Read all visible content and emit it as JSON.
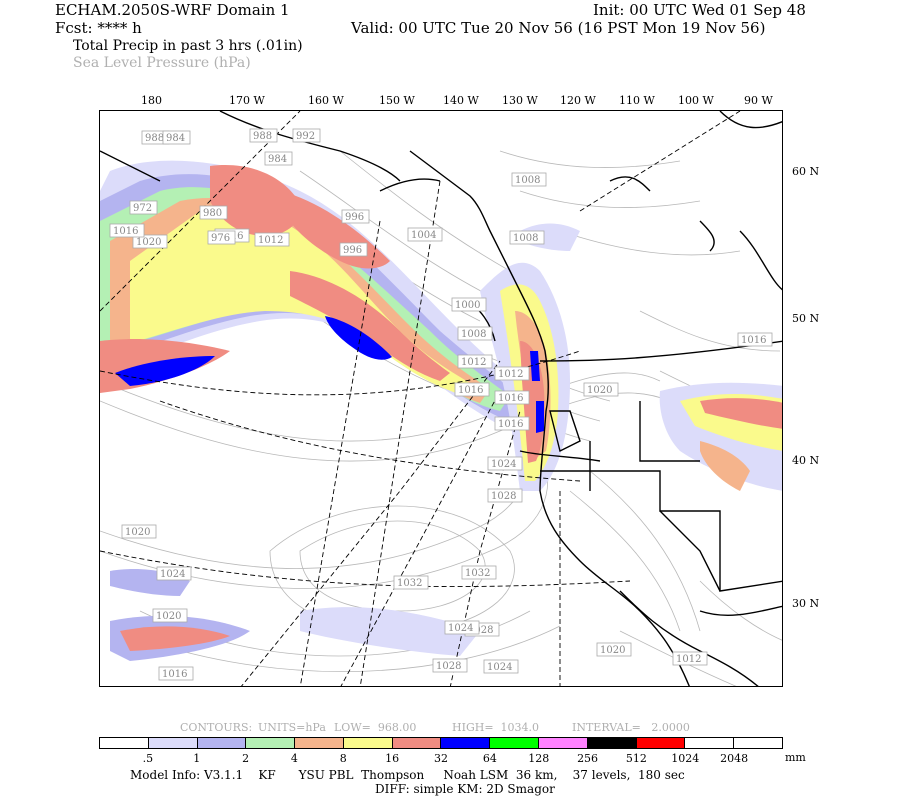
{
  "header": {
    "model_line": "ECHAM.2050S-WRF Domain 1",
    "fcst_line": "Fcst: **** h",
    "init_line": "Init: 00 UTC Wed 01 Sep 48",
    "valid_line": "Valid: 00 UTC Tue 20 Nov 56 (16 PST Mon 19 Nov 56)",
    "field1": "Total Precip in past 3 hrs (.01in)",
    "field2": "Sea Level Pressure (hPa)"
  },
  "map": {
    "lon_labels": [
      "180",
      "170 W",
      "160 W",
      "150 W",
      "140 W",
      "130 W",
      "120 W",
      "110 W",
      "100 W",
      "90 W"
    ],
    "lat_labels": [
      "60 N",
      "50 N",
      "40 N",
      "30 N"
    ],
    "pressure_labels": [
      "988",
      "984",
      "988",
      "992",
      "984",
      "996",
      "996",
      "1008",
      "1008",
      "1004",
      "1000",
      "1008",
      "1012",
      "1016",
      "1012",
      "1016",
      "1020",
      "1016",
      "1024",
      "1028",
      "1020",
      "1024",
      "1032",
      "1032",
      "1024",
      "1028",
      "1028",
      "1020",
      "1016",
      "1020",
      "1016",
      "1012",
      "1024",
      "1020",
      "1016",
      "1012",
      "1016",
      "976",
      "972",
      "980"
    ],
    "colors": {
      "lavender": "#dcdcfa",
      "light_blue": "#b4b4f0",
      "light_green": "#b4f0b4",
      "salmon": "#f5b48c",
      "yellow": "#fafa8c",
      "rose": "#f08c82",
      "blue": "#0000ff",
      "green": "#00ff00",
      "magenta": "#ff82ff",
      "black": "#000000",
      "red": "#ff0000"
    }
  },
  "contour_info": {
    "contours": "CONTOURS:",
    "units": "UNITS=hPa",
    "low": "LOW=  968.00",
    "high": "HIGH=  1034.0",
    "interval": "INTERVAL=   2.0000"
  },
  "legend": {
    "ticks": [
      ".5",
      "1",
      "2",
      "4",
      "8",
      "16",
      "32",
      "64",
      "128",
      "256",
      "512",
      "1024",
      "2048"
    ],
    "unit": "mm",
    "swatch_colors": [
      "#ffffff",
      "#dcdcfa",
      "#b4b4f0",
      "#b4f0b4",
      "#f5b48c",
      "#fafa8c",
      "#f08c82",
      "#0000ff",
      "#00ff00",
      "#ff82ff",
      "#000000",
      "#ff0000",
      "#ffffff",
      "#ffffff"
    ]
  },
  "footer": {
    "line1": "Model Info: V3.1.1    KF      YSU PBL  Thompson     Noah LSM  36 km,    37 levels,  180 sec",
    "line2": "DIFF: simple KM: 2D Smagor"
  }
}
